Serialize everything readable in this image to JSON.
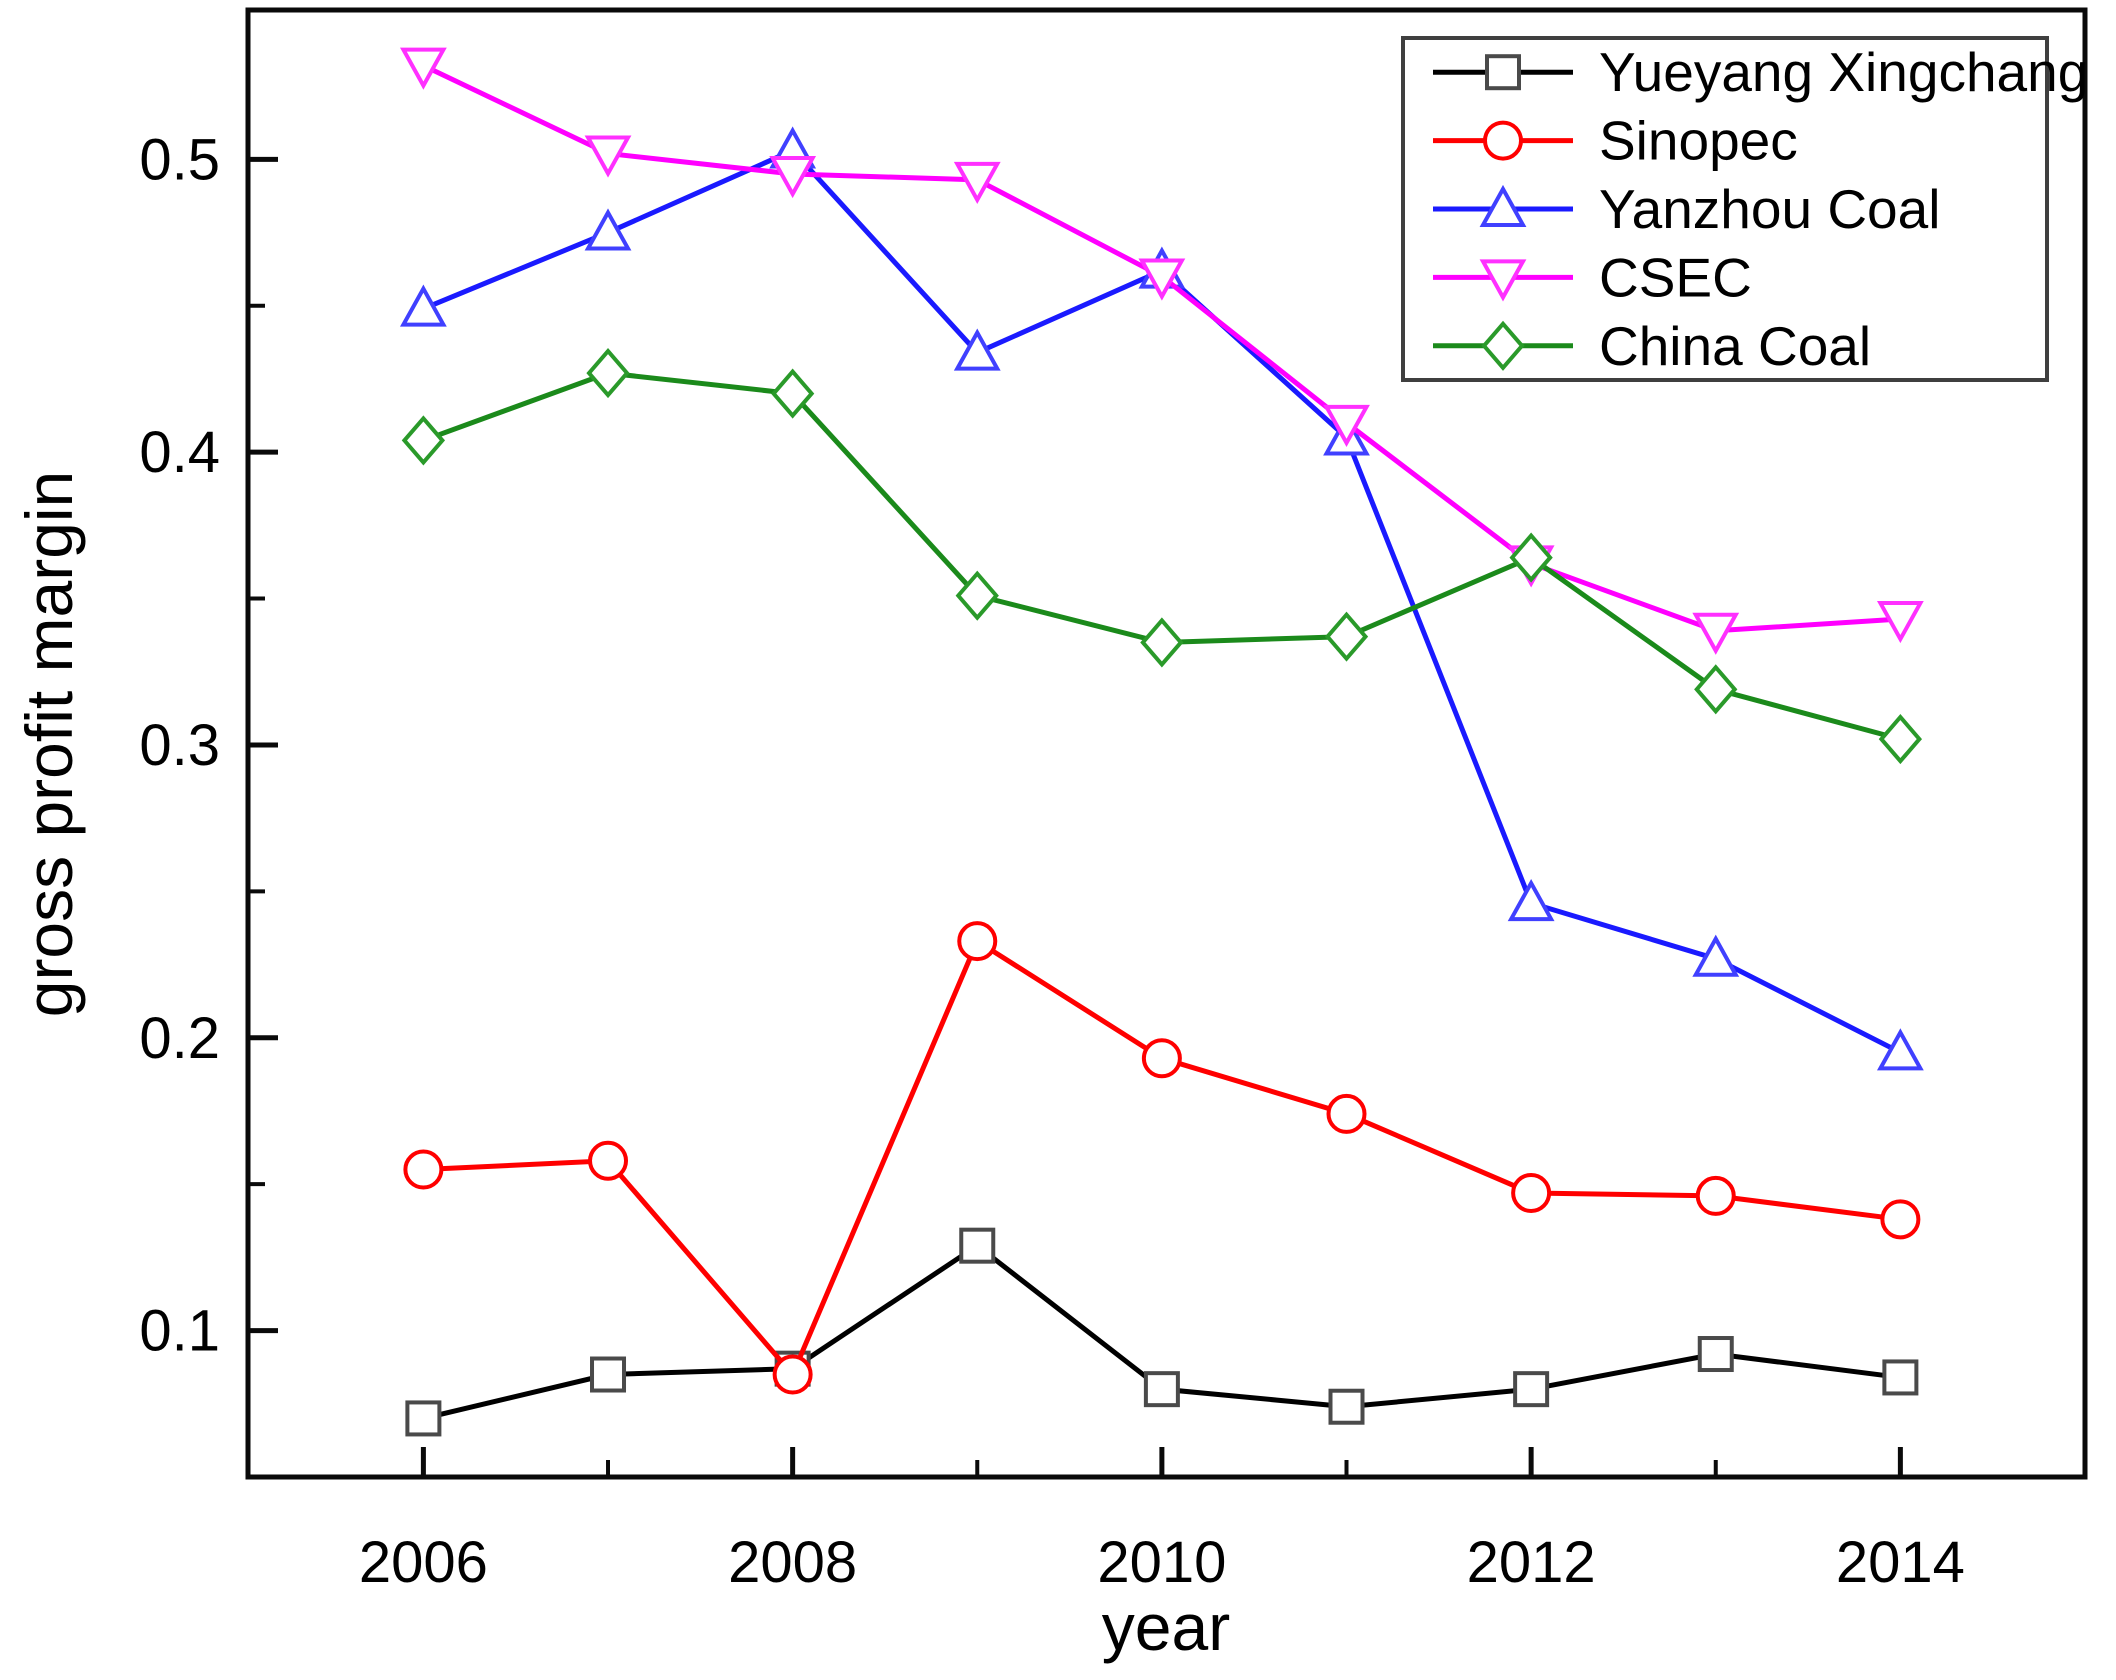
{
  "chart_data": {
    "type": "line",
    "title": "",
    "xlabel": "year",
    "ylabel": "gross profit margin",
    "xlim": [
      2005.05,
      2015.0
    ],
    "ylim": [
      0.05,
      0.551
    ],
    "grid": false,
    "legend_position": "top-right",
    "x_major_ticks": [
      2006,
      2008,
      2010,
      2012,
      2014
    ],
    "x_minor_ticks": [
      2007,
      2009,
      2011,
      2013
    ],
    "y_major_ticks": [
      0.1,
      0.2,
      0.3,
      0.4,
      0.5
    ],
    "y_minor_ticks": [
      0.15,
      0.25,
      0.35,
      0.45
    ],
    "x": [
      2006,
      2007,
      2008,
      2009,
      2010,
      2011,
      2012,
      2013,
      2014
    ],
    "series": [
      {
        "name": "Yueyang Xingchang",
        "marker": "square",
        "color": "#000000",
        "marker_color": "#4a4a4a",
        "values": [
          0.07,
          0.085,
          0.087,
          0.129,
          0.08,
          0.074,
          0.08,
          0.092,
          0.084
        ]
      },
      {
        "name": "Sinopec",
        "marker": "circle",
        "color": "#ff0000",
        "marker_color": "#ff0000",
        "values": [
          0.155,
          0.158,
          0.085,
          0.233,
          0.193,
          0.174,
          0.147,
          0.146,
          0.138
        ]
      },
      {
        "name": "Yanzhou Coal",
        "marker": "triangle-up",
        "color": "#1a1aff",
        "marker_color": "#4040ff",
        "values": [
          0.449,
          0.475,
          0.503,
          0.434,
          0.462,
          0.405,
          0.246,
          0.227,
          0.195
        ]
      },
      {
        "name": "CSEC",
        "marker": "triangle-down",
        "color": "#ff00ff",
        "marker_color": "#ff30ff",
        "values": [
          0.532,
          0.502,
          0.495,
          0.493,
          0.46,
          0.41,
          0.362,
          0.339,
          0.343
        ]
      },
      {
        "name": "China Coal",
        "marker": "diamond",
        "color": "#1b8a1b",
        "marker_color": "#2a9a2a",
        "values": [
          0.404,
          0.427,
          0.42,
          0.351,
          0.335,
          0.337,
          0.364,
          0.319,
          0.302
        ]
      }
    ]
  },
  "frame_color": "#0a0a0a",
  "legend_border_color": "#3f3f3f"
}
